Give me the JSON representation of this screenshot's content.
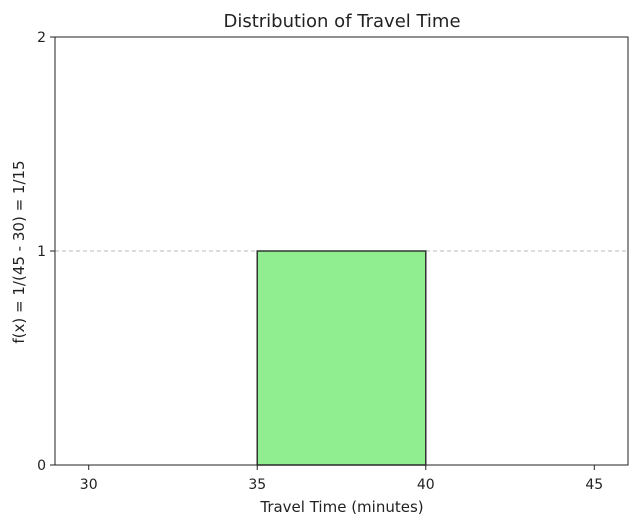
{
  "chart_data": {
    "type": "bar",
    "title": "Distribution of Travel Time",
    "xlabel": "Travel Time (minutes)",
    "ylabel": "f(x) = 1/(45 - 30) = 1/15",
    "xlim": [
      29,
      46
    ],
    "ylim": [
      0,
      2
    ],
    "xticks": [
      "30",
      "35",
      "40",
      "45"
    ],
    "xtick_values": [
      30,
      35,
      40,
      45
    ],
    "yticks": [
      "0",
      "1",
      "2"
    ],
    "ytick_values": [
      0,
      1,
      2
    ],
    "bars": [
      {
        "x_start": 35,
        "x_end": 40,
        "value": 1
      }
    ],
    "reference_line": {
      "y": 1,
      "style": "dashed"
    },
    "grid": false,
    "colors": {
      "bar_fill": "#90ee90",
      "bar_edge": "#333333",
      "reference_line": "#bbbbbb",
      "axes": "#222222"
    }
  }
}
